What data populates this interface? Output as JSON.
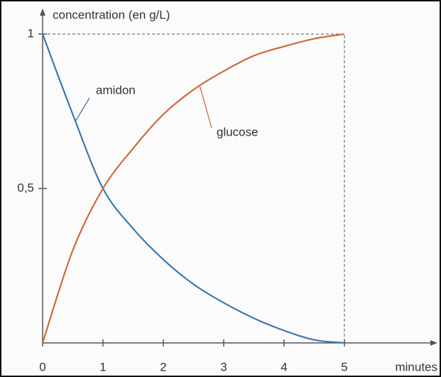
{
  "chart_data": {
    "type": "line",
    "y_label": "concentration (en g/L)",
    "x_label": "minutes",
    "x": [
      0,
      0.5,
      1,
      1.5,
      2,
      2.5,
      3,
      3.5,
      4,
      4.5,
      5
    ],
    "series": [
      {
        "name": "amidon",
        "color": "#3d78ad",
        "values": [
          1,
          0.74,
          0.5,
          0.37,
          0.27,
          0.19,
          0.13,
          0.08,
          0.04,
          0.01,
          0
        ]
      },
      {
        "name": "glucose",
        "color": "#cf6a3e",
        "values": [
          0,
          0.3,
          0.5,
          0.63,
          0.74,
          0.82,
          0.88,
          0.93,
          0.96,
          0.985,
          1
        ]
      }
    ],
    "xlim": [
      0,
      5
    ],
    "xticks": [
      0,
      1,
      2,
      3,
      4,
      5
    ],
    "ylim": [
      0,
      1
    ],
    "yticks": [
      {
        "value": 0.5,
        "label": "0,5"
      },
      1
    ]
  }
}
